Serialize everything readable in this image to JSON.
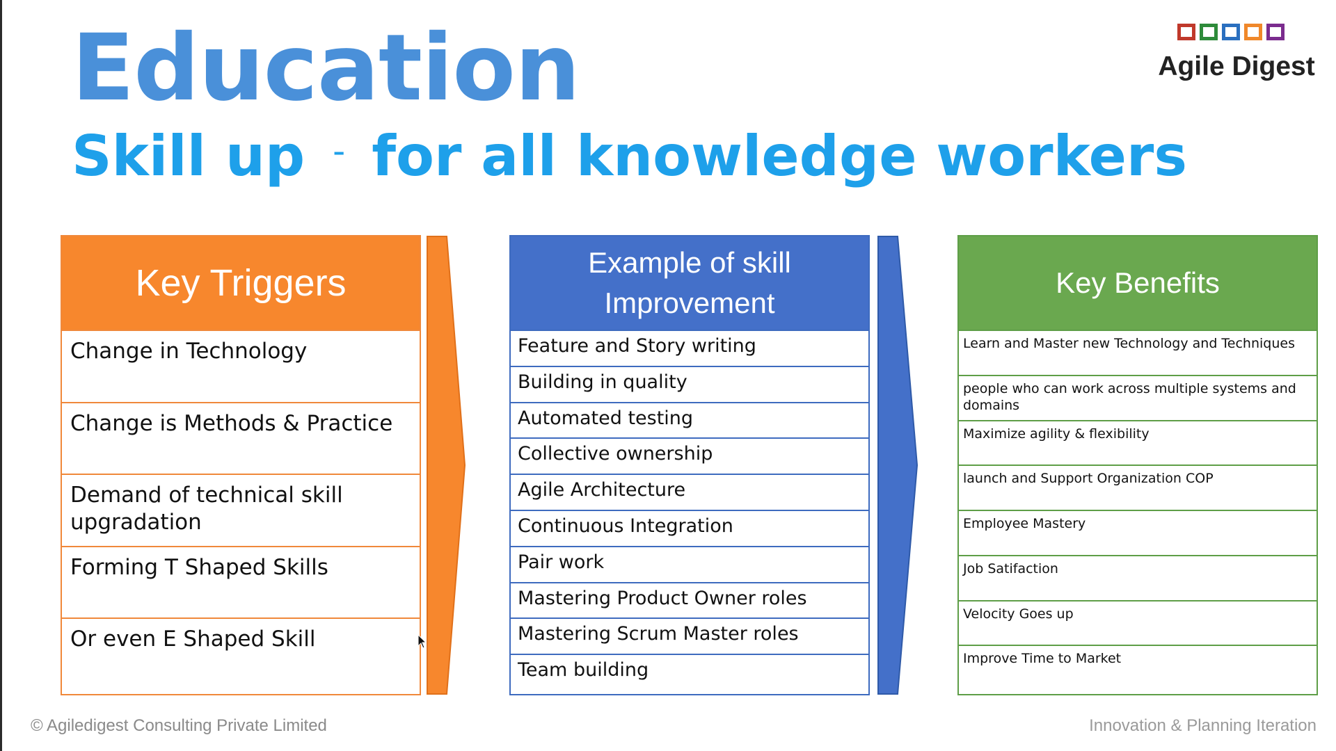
{
  "slide": {
    "title": "Education",
    "subtitle_left": "Skill up",
    "subtitle_dash": "-",
    "subtitle_right": "for all knowledge workers",
    "logo_text": "Agile Digest",
    "logo_colors": [
      "#c0392b",
      "#2e8b3a",
      "#2a6fbf",
      "#f0882a",
      "#7b2c8e"
    ]
  },
  "columns": {
    "triggers": {
      "header": "Key Triggers",
      "color": "#f7872d",
      "items": [
        "Change in Technology",
        "Change is Methods & Practice",
        "Demand of technical skill upgradation",
        "Forming T Shaped Skills",
        "Or even E Shaped Skill"
      ]
    },
    "skills": {
      "header_line1": "Example of skill",
      "header_line2": "Improvement",
      "color": "#4470c9",
      "items": [
        "Feature and Story writing",
        "Building in quality",
        "Automated testing",
        "Collective ownership",
        "Agile Architecture",
        "Continuous Integration",
        "Pair work",
        "Mastering Product Owner roles",
        "Mastering Scrum Master roles",
        "Team building"
      ]
    },
    "benefits": {
      "header": "Key Benefits",
      "color": "#6aa84f",
      "items": [
        "Learn and Master new Technology and Techniques",
        "people who can work across multiple systems and domains",
        "Maximize agility & flexibility",
        "launch and Support Organization COP",
        "Employee Mastery",
        "Job Satifaction",
        "Velocity Goes up",
        "Improve Time to Market"
      ]
    }
  },
  "footer": {
    "left": "© Agiledigest Consulting Private Limited",
    "right": "Innovation & Planning Iteration"
  }
}
